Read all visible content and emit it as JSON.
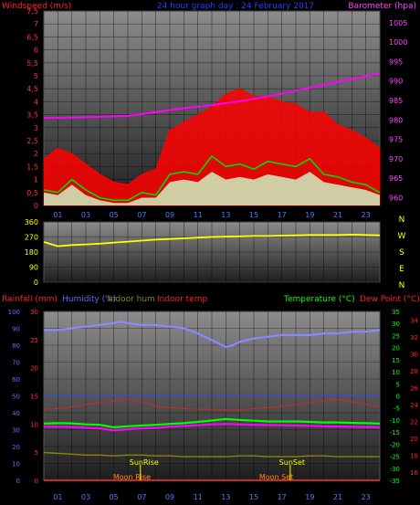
{
  "chart_data": [
    {
      "type": "line",
      "title": "24 hour graph day : 24 February 2017",
      "ylabel_left": "Windspeed (m/s)",
      "ylabel_right": "Barometer (hpa)",
      "yticks_left": [
        "0",
        "0,5",
        "1",
        "1,5",
        "2",
        "2,5",
        "3",
        "3,5",
        "4",
        "4,5",
        "5",
        "5,5",
        "6",
        "6,5",
        "7",
        "7,5"
      ],
      "yticks_right": [
        "960",
        "965",
        "970",
        "975",
        "980",
        "985",
        "990",
        "995",
        "1000",
        "1005"
      ],
      "ylim_left": [
        0,
        7.5
      ],
      "ylim_right": [
        958,
        1008
      ],
      "xticks": [
        "01",
        "03",
        "05",
        "07",
        "09",
        "11",
        "13",
        "15",
        "17",
        "19",
        "21",
        "23"
      ],
      "series": [
        {
          "name": "Barometer",
          "color": "#ff00ff",
          "axis": "right",
          "x": [
            0,
            2,
            4,
            6,
            8,
            10,
            12,
            14,
            16,
            18,
            20,
            22,
            24
          ],
          "y": [
            980.5,
            980.6,
            980.8,
            981.0,
            982.0,
            983.0,
            983.8,
            984.8,
            986.0,
            987.5,
            989.0,
            990.5,
            992.0
          ]
        },
        {
          "name": "Wind gust",
          "color": "#ff0000",
          "axis": "left",
          "x": [
            0,
            1,
            2,
            3,
            4,
            5,
            6,
            7,
            8,
            9,
            10,
            11,
            12,
            13,
            14,
            15,
            16,
            17,
            18,
            19,
            20,
            21,
            22,
            23,
            24
          ],
          "y": [
            1.8,
            2.2,
            2.0,
            1.6,
            1.2,
            0.9,
            0.8,
            1.2,
            1.4,
            2.9,
            3.2,
            3.5,
            3.8,
            4.3,
            4.5,
            4.2,
            4.2,
            4.0,
            3.9,
            3.6,
            3.6,
            3.1,
            2.9,
            2.6,
            2.2
          ]
        },
        {
          "name": "Wind average",
          "color": "#00dd00",
          "axis": "left",
          "x": [
            0,
            1,
            2,
            3,
            4,
            5,
            6,
            7,
            8,
            9,
            10,
            11,
            12,
            13,
            14,
            15,
            16,
            17,
            18,
            19,
            20,
            21,
            22,
            23,
            24
          ],
          "y": [
            0.6,
            0.5,
            1.0,
            0.6,
            0.3,
            0.2,
            0.2,
            0.5,
            0.4,
            1.2,
            1.3,
            1.2,
            1.9,
            1.5,
            1.6,
            1.4,
            1.7,
            1.6,
            1.5,
            1.8,
            1.2,
            1.1,
            0.9,
            0.8,
            0.5
          ]
        },
        {
          "name": "Wind speed",
          "color": "#ccffcc",
          "axis": "left",
          "x": [
            0,
            1,
            2,
            3,
            4,
            5,
            6,
            7,
            8,
            9,
            10,
            11,
            12,
            13,
            14,
            15,
            16,
            17,
            18,
            19,
            20,
            21,
            22,
            23,
            24
          ],
          "y": [
            0.5,
            0.4,
            0.8,
            0.4,
            0.2,
            0.1,
            0.1,
            0.3,
            0.3,
            0.9,
            1.0,
            0.9,
            1.3,
            1.0,
            1.1,
            1.0,
            1.2,
            1.1,
            1.0,
            1.3,
            0.9,
            0.8,
            0.7,
            0.6,
            0.4
          ]
        }
      ]
    },
    {
      "type": "line",
      "yticks_left": [
        "0",
        "90",
        "180",
        "270",
        "360"
      ],
      "yticks_right": [
        "N",
        "W",
        "S",
        "E",
        "N"
      ],
      "ylim": [
        0,
        360
      ],
      "series": [
        {
          "name": "Wind direction",
          "color": "#ffff00",
          "x": [
            0,
            1,
            2,
            3,
            4,
            5,
            6,
            7,
            8,
            9,
            10,
            11,
            12,
            13,
            14,
            15,
            16,
            17,
            18,
            19,
            20,
            21,
            22,
            23,
            24
          ],
          "y": [
            240,
            215,
            222,
            226,
            230,
            236,
            242,
            248,
            254,
            258,
            262,
            266,
            270,
            272,
            274,
            276,
            276,
            278,
            280,
            282,
            282,
            282,
            284,
            282,
            280
          ]
        }
      ]
    },
    {
      "type": "line",
      "legend": [
        "Rainfall (mm)",
        "Humidity (%)",
        "Indoor hum",
        "Indoor temp",
        "Temperature (°C)",
        "Dew Point (°C)"
      ],
      "yticks_rain": [
        "0",
        "5",
        "10",
        "15",
        "20",
        "25",
        "30"
      ],
      "yticks_humidity": [
        "0",
        "10",
        "20",
        "30",
        "40",
        "50",
        "60",
        "70",
        "80",
        "90",
        "100"
      ],
      "yticks_temp": [
        "-35",
        "-30",
        "-25",
        "-20",
        "-15",
        "-10",
        "-5",
        "0",
        "5",
        "10",
        "15",
        "20",
        "25",
        "30",
        "35"
      ],
      "yticks_indoor": [
        "16",
        "18",
        "20",
        "22",
        "24",
        "26",
        "28",
        "30",
        "32",
        "34"
      ],
      "ylim_rain": [
        0,
        30
      ],
      "ylim_humidity": [
        0,
        100
      ],
      "ylim_temp": [
        -35,
        35
      ],
      "ylim_indoor": [
        15,
        35
      ],
      "xticks": [
        "01",
        "03",
        "05",
        "07",
        "09",
        "11",
        "13",
        "15",
        "17",
        "19",
        "21",
        "23"
      ],
      "annotations": [
        "SunRise",
        "SunSet",
        "Moon Rise",
        "Moon Set"
      ],
      "sunrise_hour": 6.9,
      "sunset_hour": 17.6,
      "moonrise_hour": 5.9,
      "moonset_hour": 16.8,
      "series": [
        {
          "name": "Humidity (%)",
          "color": "#8888ff",
          "axis": "humidity",
          "x": [
            0,
            1,
            2,
            3,
            4,
            5,
            5.5,
            6,
            7,
            8,
            9,
            10,
            11,
            12,
            12.5,
            13,
            13.5,
            14,
            15,
            16,
            17,
            18,
            19,
            20,
            21,
            22,
            23,
            24
          ],
          "y": [
            89,
            89,
            90,
            91,
            92,
            93,
            94,
            93,
            92,
            92,
            91,
            90,
            87,
            83,
            81,
            79,
            80,
            82,
            84,
            85,
            86,
            86,
            86,
            87,
            87,
            88,
            88,
            89
          ]
        },
        {
          "name": "Indoor temp",
          "color": "#aa3333",
          "axis": "indoor",
          "x": [
            0,
            1,
            2,
            3,
            4,
            5,
            6,
            7,
            8,
            9,
            10,
            11,
            12,
            13,
            14,
            15,
            16,
            17,
            18,
            19,
            20,
            21,
            22,
            23,
            24
          ],
          "y": [
            23.4,
            23.5,
            23.7,
            24.0,
            24.2,
            24.4,
            24.6,
            24.3,
            23.8,
            23.6,
            23.5,
            23.4,
            23.4,
            23.3,
            23.3,
            23.5,
            23.6,
            23.8,
            24.0,
            24.2,
            24.4,
            24.6,
            24.3,
            24.0,
            23.7
          ]
        },
        {
          "name": "Temperature (°C)",
          "color": "#00ff00",
          "axis": "temp",
          "x": [
            0,
            1,
            2,
            3,
            4,
            5,
            6,
            7,
            8,
            9,
            10,
            11,
            12,
            13,
            14,
            15,
            16,
            17,
            18,
            19,
            20,
            21,
            22,
            23,
            24
          ],
          "y": [
            -11.5,
            -11.3,
            -11.4,
            -11.8,
            -12.0,
            -13.0,
            -12.6,
            -12.3,
            -12.0,
            -11.6,
            -11.3,
            -10.8,
            -10.2,
            -9.6,
            -10.0,
            -10.3,
            -10.6,
            -10.6,
            -10.6,
            -10.8,
            -11.0,
            -11.0,
            -11.2,
            -11.3,
            -11.5
          ]
        },
        {
          "name": "Dew Point (°C)",
          "color": "#ff00ff",
          "axis": "temp",
          "x": [
            0,
            1,
            2,
            3,
            4,
            5,
            6,
            7,
            8,
            9,
            10,
            11,
            12,
            13,
            14,
            15,
            16,
            17,
            18,
            19,
            20,
            21,
            22,
            23,
            24
          ],
          "y": [
            -12.8,
            -12.8,
            -12.9,
            -13.2,
            -13.5,
            -14.3,
            -13.8,
            -13.5,
            -13.3,
            -12.8,
            -12.5,
            -12.2,
            -11.8,
            -11.6,
            -11.8,
            -12.0,
            -12.1,
            -12.2,
            -12.3,
            -12.4,
            -12.6,
            -12.7,
            -12.8,
            -12.9,
            -13.0
          ]
        },
        {
          "name": "Indoor hum",
          "color": "#888800",
          "axis": "humidity",
          "x": [
            0,
            1,
            2,
            3,
            4,
            5,
            6,
            7,
            8,
            9,
            10,
            11,
            12,
            13,
            14,
            15,
            16,
            17,
            18,
            19,
            20,
            21,
            22,
            23,
            24
          ],
          "y": [
            16.5,
            16.0,
            15.5,
            15.0,
            15.0,
            14.5,
            15.0,
            15.0,
            14.5,
            14.5,
            14.0,
            14.0,
            14.0,
            14.0,
            14.5,
            14.5,
            14.0,
            14.0,
            14.0,
            14.5,
            14.5,
            14.0,
            14.0,
            14.0,
            14.0
          ]
        },
        {
          "name": "Rainfall (mm)",
          "color": "#ff3333",
          "axis": "rain",
          "x": [
            0,
            24
          ],
          "y": [
            0,
            0
          ]
        }
      ]
    }
  ]
}
